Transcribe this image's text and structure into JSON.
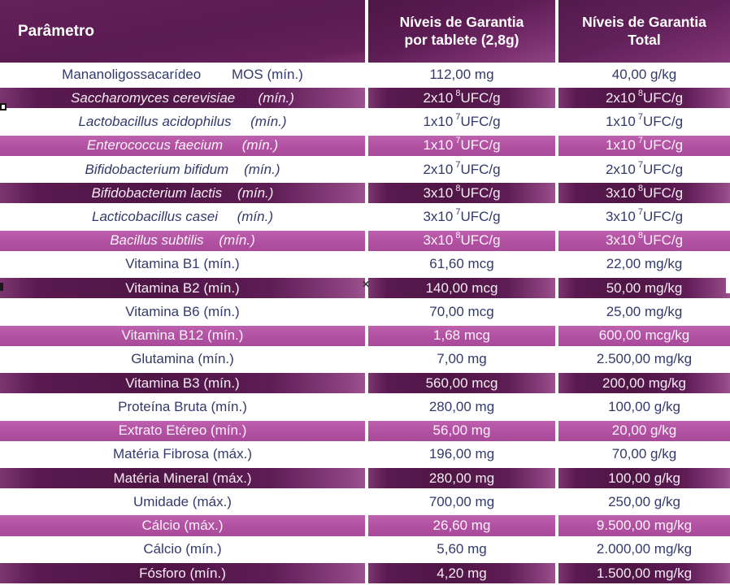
{
  "table": {
    "columns": [
      "Parâmetro",
      "Níveis de Garantia\npor tablete (2,8g)",
      "Níveis de Garantia\nTotal"
    ],
    "rows": [
      {
        "param": "Mananoligossacarídeo        MOS (mín.)",
        "italic": false,
        "per_tablet": "112,00 mg",
        "total": "40,00 g/kg"
      },
      {
        "param": "Saccharomyces cerevisiae      (mín.)",
        "italic": true,
        "per_tablet": "2x10^8 UFC/g",
        "total": "2x10^8 UFC/g"
      },
      {
        "param": "Lactobacillus acidophilus     (mín.)",
        "italic": true,
        "per_tablet": "1x10^7 UFC/g",
        "total": "1x10^7 UFC/g"
      },
      {
        "param": "Enterococcus faecium     (mín.)",
        "italic": true,
        "per_tablet": "1x10^7 UFC/g",
        "total": "1x10^7 UFC/g"
      },
      {
        "param": "Bifidobacterium bifidum    (mín.)",
        "italic": true,
        "per_tablet": "2x10^7 UFC/g",
        "total": "2x10^7 UFC/g"
      },
      {
        "param": "Bifidobacterium lactis    (mín.)",
        "italic": true,
        "per_tablet": "3x10^8 UFC/g",
        "total": "3x10^8 UFC/g"
      },
      {
        "param": "Lacticobacillus casei     (mín.)",
        "italic": true,
        "per_tablet": "3x10^7 UFC/g",
        "total": "3x10^7 UFC/g"
      },
      {
        "param": "Bacillus subtilis    (mín.)",
        "italic": true,
        "per_tablet": "3x10^8 UFC/g",
        "total": "3x10^8 UFC/g"
      },
      {
        "param": "Vitamina B1 (mín.)",
        "italic": false,
        "per_tablet": "61,60 mcg",
        "total": "22,00 mg/kg"
      },
      {
        "param": "Vitamina B2 (mín.)",
        "italic": false,
        "per_tablet": "140,00 mcg",
        "total": "50,00 mg/kg"
      },
      {
        "param": "Vitamina B6 (mín.)",
        "italic": false,
        "per_tablet": "70,00 mcg",
        "total": "25,00 mg/kg"
      },
      {
        "param": "Vitamina B12 (mín.)",
        "italic": false,
        "per_tablet": "1,68 mcg",
        "total": "600,00 mcg/kg"
      },
      {
        "param": "Glutamina (mín.)",
        "italic": false,
        "per_tablet": "7,00 mg",
        "total": "2.500,00 mg/kg"
      },
      {
        "param": "Vitamina B3 (mín.)",
        "italic": false,
        "per_tablet": "560,00 mcg",
        "total": "200,00 mg/kg"
      },
      {
        "param": "Proteína Bruta (mín.)",
        "italic": false,
        "per_tablet": "280,00 mg",
        "total": "100,00 g/kg"
      },
      {
        "param": "Extrato Etéreo (mín.)",
        "italic": false,
        "per_tablet": "56,00 mg",
        "total": "20,00 g/kg"
      },
      {
        "param": "Matéria Fibrosa (máx.)",
        "italic": false,
        "per_tablet": "196,00 mg",
        "total": "70,00 g/kg"
      },
      {
        "param": "Matéria Mineral (máx.)",
        "italic": false,
        "per_tablet": "280,00 mg",
        "total": "100,00 g/kg"
      },
      {
        "param": "Umidade (máx.)",
        "italic": false,
        "per_tablet": "700,00 mg",
        "total": "250,00 g/kg"
      },
      {
        "param": "Cálcio (máx.)",
        "italic": false,
        "per_tablet": "26,60 mg",
        "total": "9.500,00 mg/kg"
      },
      {
        "param": "Cálcio (mín.)",
        "italic": false,
        "per_tablet": "5,60 mg",
        "total": "2.000,00 mg/kg"
      },
      {
        "param": "Fósforo (mín.)",
        "italic": false,
        "per_tablet": "4,20 mg",
        "total": "1.500,00 mg/kg"
      }
    ]
  },
  "colors": {
    "header_purple": "#5a1b51",
    "dark_row_purple": "#4f1545",
    "magenta_row": "#b250a2",
    "navy_text": "#333a6b",
    "white_text": "#f4edf3"
  },
  "artifacts": {
    "cursor_glyph": "✕"
  }
}
